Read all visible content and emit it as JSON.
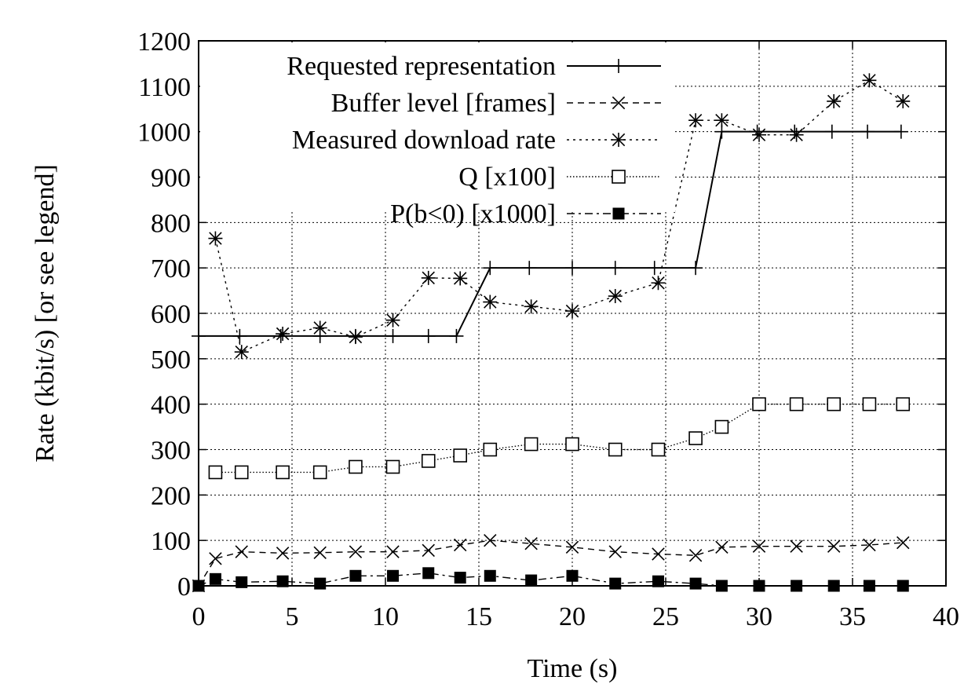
{
  "chart_data": {
    "type": "line",
    "xlabel": "Time (s)",
    "ylabel": "Rate (kbit/s)  [or see legend]",
    "xlim": [
      0,
      40
    ],
    "ylim": [
      0,
      1200
    ],
    "xticks": [
      0,
      5,
      10,
      15,
      20,
      25,
      30,
      35,
      40
    ],
    "yticks": [
      0,
      100,
      200,
      300,
      400,
      500,
      600,
      700,
      800,
      900,
      1000,
      1100,
      1200
    ],
    "grid": true,
    "legend_position": "top-left",
    "series": [
      {
        "name": "Requested representation",
        "marker": "plus",
        "dash": "solid",
        "x": [
          0,
          2.2,
          4.4,
          6.5,
          8.4,
          10.4,
          12.3,
          13.8,
          15.6,
          17.7,
          20.0,
          22.3,
          24.4,
          26.6,
          28.0,
          29.9,
          31.9,
          33.9,
          35.8,
          37.6
        ],
        "y": [
          550,
          550,
          550,
          550,
          550,
          550,
          550,
          550,
          700,
          700,
          700,
          700,
          700,
          700,
          1000,
          1000,
          1000,
          1000,
          1000,
          1000
        ]
      },
      {
        "name": "Buffer level [frames]",
        "marker": "x",
        "dash": "dashed",
        "x": [
          0,
          0.9,
          2.3,
          4.5,
          6.5,
          8.4,
          10.4,
          12.3,
          14.0,
          15.6,
          17.8,
          20.0,
          22.3,
          24.6,
          26.6,
          28.0,
          30.0,
          32.0,
          34.0,
          35.9,
          37.7
        ],
        "y": [
          0,
          60,
          75,
          72,
          73,
          75,
          75,
          78,
          90,
          100,
          93,
          85,
          75,
          70,
          67,
          85,
          87,
          87,
          87,
          90,
          95
        ]
      },
      {
        "name": "Measured download rate",
        "marker": "star",
        "dash": "dotted",
        "x": [
          0.9,
          2.3,
          4.5,
          6.5,
          8.4,
          10.4,
          12.3,
          14.0,
          15.6,
          17.8,
          20.0,
          22.3,
          24.6,
          26.6,
          28.0,
          30.0,
          32.0,
          34.0,
          35.9,
          37.7
        ],
        "y": [
          765,
          515,
          555,
          568,
          548,
          585,
          678,
          677,
          625,
          615,
          605,
          638,
          667,
          1025,
          1025,
          993,
          993,
          1067,
          1113,
          1067
        ]
      },
      {
        "name": "Q [x100]",
        "marker": "square-open",
        "dash": "fine-dotted",
        "x": [
          0.9,
          2.3,
          4.5,
          6.5,
          8.4,
          10.4,
          12.3,
          14.0,
          15.6,
          17.8,
          20.0,
          22.3,
          24.6,
          26.6,
          28.0,
          30.0,
          32.0,
          34.0,
          35.9,
          37.7
        ],
        "y": [
          250,
          250,
          250,
          250,
          262,
          262,
          275,
          287,
          300,
          312,
          312,
          300,
          300,
          325,
          350,
          400,
          400,
          400,
          400,
          400
        ]
      },
      {
        "name": "P(b<0) [x1000]",
        "marker": "square-filled",
        "dash": "dash-dot",
        "x": [
          0,
          0.9,
          2.3,
          4.5,
          6.5,
          8.4,
          10.4,
          12.3,
          14.0,
          15.6,
          17.8,
          20.0,
          22.3,
          24.6,
          26.6,
          28.0,
          30.0,
          32.0,
          34.0,
          35.9,
          37.7
        ],
        "y": [
          0,
          15,
          8,
          10,
          5,
          22,
          22,
          28,
          18,
          22,
          12,
          22,
          5,
          10,
          5,
          0,
          0,
          0,
          0,
          0,
          0
        ]
      }
    ]
  }
}
